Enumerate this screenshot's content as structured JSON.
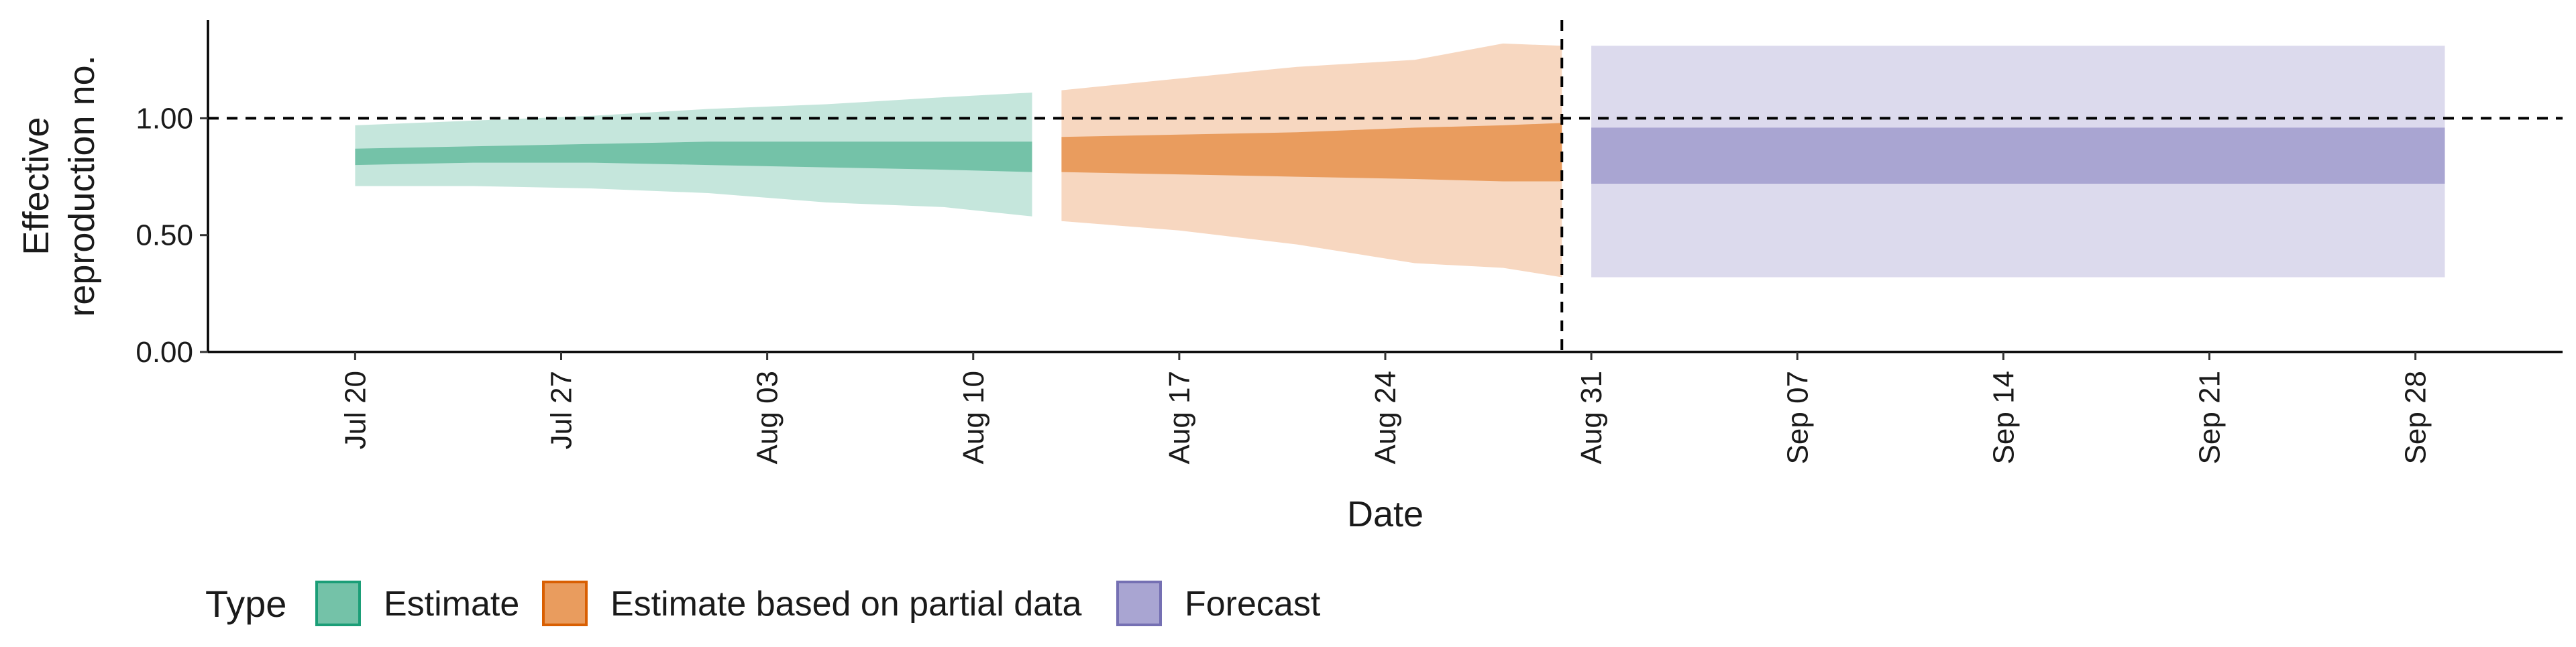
{
  "chart_data": {
    "type": "area",
    "xlabel": "Date",
    "ylabel_lines": [
      "Effective",
      "reproduction no."
    ],
    "ylim": [
      0,
      1.42
    ],
    "xlim": [
      "2020-07-15",
      "2020-10-03"
    ],
    "y_ticks": [
      0.0,
      0.5,
      1.0
    ],
    "y_tick_labels": [
      "0.00",
      "0.50",
      "1.00"
    ],
    "x_ticks": [
      "2020-07-20",
      "2020-07-27",
      "2020-08-03",
      "2020-08-10",
      "2020-08-17",
      "2020-08-24",
      "2020-08-31",
      "2020-09-07",
      "2020-09-14",
      "2020-09-21",
      "2020-09-28"
    ],
    "x_tick_labels": [
      "Jul 20",
      "Jul 27",
      "Aug 03",
      "Aug 10",
      "Aug 17",
      "Aug 24",
      "Aug 31",
      "Sep 07",
      "Sep 14",
      "Sep 21",
      "Sep 28"
    ],
    "reference_hline": 1.0,
    "reference_vline": "2020-08-30",
    "grid": false,
    "legend": {
      "title": "Type",
      "position": "bottom-left"
    },
    "series": [
      {
        "name": "Estimate",
        "color": "#1b9e77",
        "inner_fill": "#74c2a8",
        "outer_fill": "#c5e6dc",
        "dates": [
          "2020-07-20",
          "2020-07-24",
          "2020-07-28",
          "2020-08-01",
          "2020-08-05",
          "2020-08-09",
          "2020-08-12"
        ],
        "outer_lower": [
          0.71,
          0.71,
          0.7,
          0.68,
          0.64,
          0.62,
          0.58
        ],
        "inner_lower": [
          0.8,
          0.81,
          0.81,
          0.8,
          0.79,
          0.78,
          0.77
        ],
        "inner_upper": [
          0.87,
          0.88,
          0.89,
          0.9,
          0.9,
          0.9,
          0.9
        ],
        "outer_upper": [
          0.97,
          0.99,
          1.01,
          1.04,
          1.06,
          1.09,
          1.11
        ]
      },
      {
        "name": "Estimate based on partial data",
        "color": "#d95f02",
        "inner_fill": "#e99c5e",
        "outer_fill": "#f7d7c0",
        "dates": [
          "2020-08-13",
          "2020-08-17",
          "2020-08-21",
          "2020-08-25",
          "2020-08-28",
          "2020-08-30"
        ],
        "outer_lower": [
          0.56,
          0.52,
          0.46,
          0.38,
          0.36,
          0.32
        ],
        "inner_lower": [
          0.77,
          0.76,
          0.75,
          0.74,
          0.73,
          0.73
        ],
        "inner_upper": [
          0.92,
          0.93,
          0.94,
          0.96,
          0.97,
          0.98
        ],
        "outer_upper": [
          1.12,
          1.17,
          1.22,
          1.25,
          1.32,
          1.31
        ]
      },
      {
        "name": "Forecast",
        "color": "#7570b3",
        "inner_fill": "#a9a5d2",
        "outer_fill": "#dcdaed",
        "dates": [
          "2020-08-31",
          "2020-09-29"
        ],
        "outer_lower": [
          0.32,
          0.32
        ],
        "inner_lower": [
          0.72,
          0.72
        ],
        "inner_upper": [
          0.96,
          0.96
        ],
        "outer_upper": [
          1.31,
          1.31
        ]
      }
    ]
  }
}
